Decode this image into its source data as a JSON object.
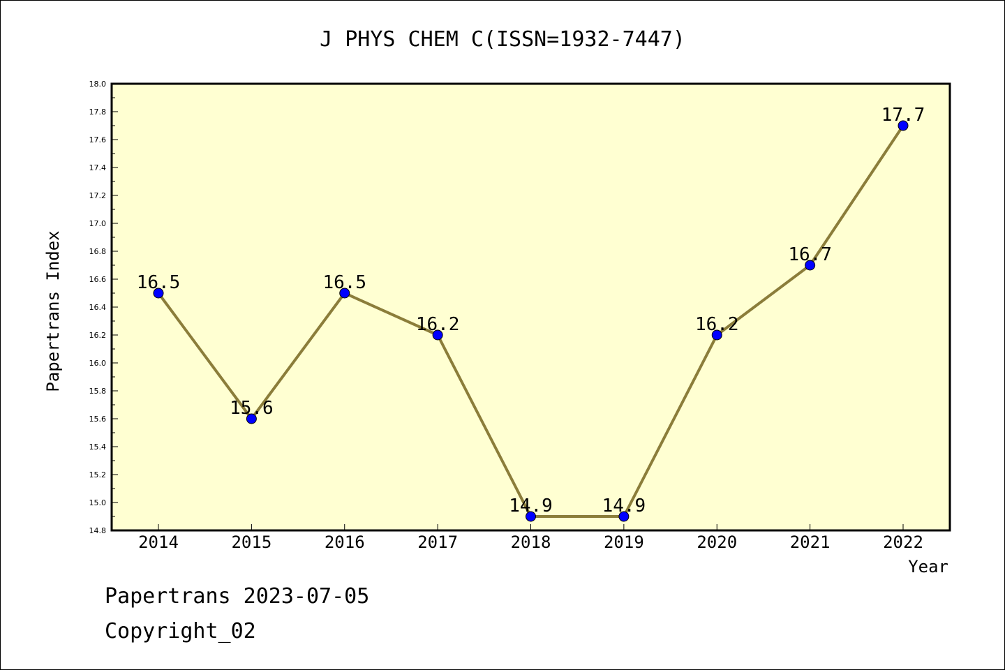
{
  "chart_data": {
    "type": "line",
    "title": "J PHYS CHEM C(ISSN=1932-7447)",
    "xlabel": "Year",
    "ylabel": "Papertrans Index",
    "categories": [
      "2014",
      "2015",
      "2016",
      "2017",
      "2018",
      "2019",
      "2020",
      "2021",
      "2022"
    ],
    "values": [
      16.5,
      15.6,
      16.5,
      16.2,
      14.9,
      14.9,
      16.2,
      16.7,
      17.7
    ],
    "data_labels": [
      "16.5",
      "15.6",
      "16.5",
      "16.2",
      "14.9",
      "14.9",
      "16.2",
      "16.7",
      "17.7"
    ],
    "ylim": [
      14.8,
      18.0
    ],
    "y_ticks": [
      "14.8",
      "15.0",
      "15.2",
      "15.4",
      "15.6",
      "15.8",
      "16.0",
      "16.2",
      "16.4",
      "16.6",
      "16.8",
      "17.0",
      "17.2",
      "17.4",
      "17.6",
      "17.8",
      "18.0"
    ],
    "grid": false,
    "colors": {
      "plot_background": "#ffffd2",
      "line": "#8b7d3a",
      "marker": "#0000ff"
    }
  },
  "footer": {
    "line1": "Papertrans 2023-07-05",
    "line2": "Copyright_02"
  }
}
